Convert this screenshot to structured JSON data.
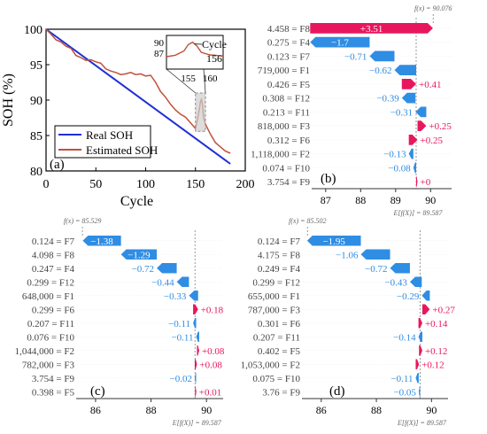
{
  "colors": {
    "pos": "#e8175d",
    "neg": "#2f8de4",
    "real": "#1f2fd6",
    "est": "#c0503a",
    "inset_box": "#b0b0b0"
  },
  "chart_data": [
    {
      "id": "a",
      "type": "line",
      "panel_label": "(a)",
      "xlabel": "Cycle",
      "ylabel": "SOH (%)",
      "xlim": [
        0,
        200
      ],
      "ylim": [
        80,
        100
      ],
      "xticks": [
        "0",
        "50",
        "100",
        "150",
        "200"
      ],
      "yticks": [
        "80",
        "85",
        "90",
        "95",
        "100"
      ],
      "legend": {
        "position": "bottom-left",
        "items": [
          "Real SOH",
          "Estimated SOH"
        ]
      },
      "series": [
        {
          "name": "Real SOH",
          "x": [
            0,
            185
          ],
          "y": [
            100,
            81
          ]
        },
        {
          "name": "Estimated SOH",
          "x": [
            0,
            5,
            10,
            15,
            20,
            25,
            30,
            35,
            40,
            45,
            50,
            55,
            60,
            65,
            70,
            75,
            80,
            85,
            90,
            95,
            100,
            105,
            110,
            115,
            120,
            125,
            130,
            135,
            140,
            145,
            150,
            152,
            154,
            155,
            156,
            157,
            158,
            160,
            165,
            170,
            175,
            180,
            185
          ],
          "y": [
            100,
            99.3,
            98.5,
            98.2,
            97.6,
            97.3,
            96.3,
            96.0,
            95.6,
            95.7,
            95.4,
            95.2,
            94.4,
            94.1,
            93.9,
            93.6,
            93.7,
            93.9,
            93.6,
            93.7,
            93.4,
            93.5,
            92.5,
            91.2,
            90.4,
            89.4,
            88.6,
            88.0,
            87.6,
            86.8,
            86.0,
            87.2,
            88.8,
            89.8,
            90.1,
            89.4,
            87.6,
            86.6,
            85.2,
            84.0,
            83.4,
            82.8,
            82.5
          ]
        }
      ],
      "inset": {
        "annotation": "Cycle\n156",
        "xticks": [
          "155",
          "160"
        ],
        "yticks": [
          "87",
          "90"
        ],
        "xlim": [
          150,
          163
        ],
        "ylim": [
          84.5,
          92
        ]
      }
    },
    {
      "id": "b",
      "type": "waterfall",
      "panel_label": "(b)",
      "fx_label": "f(x) = 90.076",
      "ex_label": "E[f(X)] = 89.587",
      "base": 89.587,
      "final": 90.076,
      "xlim": [
        86.6,
        90.6
      ],
      "xticks": [
        87,
        88,
        89,
        90
      ],
      "features": [
        {
          "value": "4.458",
          "name": "F8",
          "contribution": 3.51,
          "label": "+3.51"
        },
        {
          "value": "0.275",
          "name": "F4",
          "contribution": -1.7,
          "label": "−1.7"
        },
        {
          "value": "0.123",
          "name": "F7",
          "contribution": -0.71,
          "label": "−0.71"
        },
        {
          "value": "719,000",
          "name": "F1",
          "contribution": -0.62,
          "label": "−0.62"
        },
        {
          "value": "0.426",
          "name": "F5",
          "contribution": 0.41,
          "label": "+0.41"
        },
        {
          "value": "0.308",
          "name": "F12",
          "contribution": -0.39,
          "label": "−0.39"
        },
        {
          "value": "0.213",
          "name": "F11",
          "contribution": -0.31,
          "label": "−0.31"
        },
        {
          "value": "818,000",
          "name": "F3",
          "contribution": 0.25,
          "label": "+0.25"
        },
        {
          "value": "0.312",
          "name": "F6",
          "contribution": 0.25,
          "label": "+0.25"
        },
        {
          "value": "1,118,000",
          "name": "F2",
          "contribution": -0.13,
          "label": "−0.13"
        },
        {
          "value": "0.074",
          "name": "F10",
          "contribution": -0.08,
          "label": "−0.08"
        },
        {
          "value": "3.754",
          "name": "F9",
          "contribution": 0.0,
          "label": "+0"
        }
      ]
    },
    {
      "id": "c",
      "type": "waterfall",
      "panel_label": "(c)",
      "fx_label": "f(x) = 85.529",
      "ex_label": "E[f(X)] = 89.587",
      "base": 89.587,
      "final": 85.529,
      "xlim": [
        85.3,
        90.6
      ],
      "xticks": [
        86,
        88,
        90
      ],
      "features": [
        {
          "value": "0.124",
          "name": "F7",
          "contribution": -1.38,
          "label": "−1.38"
        },
        {
          "value": "4.098",
          "name": "F8",
          "contribution": -1.29,
          "label": "−1.29"
        },
        {
          "value": "0.247",
          "name": "F4",
          "contribution": -0.72,
          "label": "−0.72"
        },
        {
          "value": "0.299",
          "name": "F12",
          "contribution": -0.44,
          "label": "−0.44"
        },
        {
          "value": "648,000",
          "name": "F1",
          "contribution": -0.33,
          "label": "−0.33"
        },
        {
          "value": "0.299",
          "name": "F6",
          "contribution": 0.18,
          "label": "+0.18"
        },
        {
          "value": "0.207",
          "name": "F11",
          "contribution": -0.11,
          "label": "−0.11"
        },
        {
          "value": "0.076",
          "name": "F10",
          "contribution": -0.11,
          "label": "−0.11"
        },
        {
          "value": "1,044,000",
          "name": "F2",
          "contribution": 0.08,
          "label": "+0.08"
        },
        {
          "value": "782,000",
          "name": "F3",
          "contribution": 0.08,
          "label": "+0.08"
        },
        {
          "value": "3.754",
          "name": "F9",
          "contribution": -0.02,
          "label": "−0.02"
        },
        {
          "value": "0.398",
          "name": "F5",
          "contribution": 0.01,
          "label": "+0.01"
        }
      ]
    },
    {
      "id": "d",
      "type": "waterfall",
      "panel_label": "(d)",
      "fx_label": "f(x) = 85.502",
      "ex_label": "E[f(X)] = 89.587",
      "base": 89.587,
      "final": 85.502,
      "xlim": [
        85.3,
        90.6
      ],
      "xticks": [
        86,
        88,
        90
      ],
      "features": [
        {
          "value": "0.124",
          "name": "F7",
          "contribution": -1.95,
          "label": "−1.95"
        },
        {
          "value": "4.175",
          "name": "F8",
          "contribution": -1.06,
          "label": "−1.06"
        },
        {
          "value": "0.249",
          "name": "F4",
          "contribution": -0.72,
          "label": "−0.72"
        },
        {
          "value": "0.299",
          "name": "F12",
          "contribution": -0.43,
          "label": "−0.43"
        },
        {
          "value": "655,000",
          "name": "F1",
          "contribution": -0.29,
          "label": "−0.29"
        },
        {
          "value": "787,000",
          "name": "F3",
          "contribution": 0.27,
          "label": "+0.27"
        },
        {
          "value": "0.301",
          "name": "F6",
          "contribution": 0.14,
          "label": "+0.14"
        },
        {
          "value": "0.207",
          "name": "F11",
          "contribution": -0.14,
          "label": "−0.14"
        },
        {
          "value": "0.402",
          "name": "F5",
          "contribution": 0.12,
          "label": "+0.12"
        },
        {
          "value": "1,053,000",
          "name": "F2",
          "contribution": 0.12,
          "label": "+0.12"
        },
        {
          "value": "0.075",
          "name": "F10",
          "contribution": -0.11,
          "label": "−0.11"
        },
        {
          "value": "3.76",
          "name": "F9",
          "contribution": -0.05,
          "label": "−0.05"
        }
      ]
    }
  ]
}
